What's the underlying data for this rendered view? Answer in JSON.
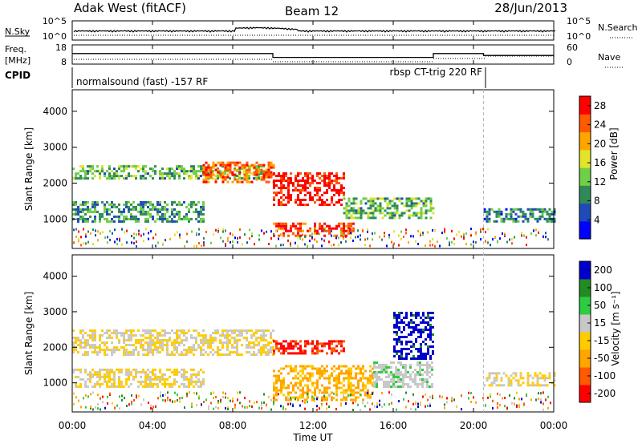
{
  "header": {
    "station": "Adak West (fitACF)",
    "beam": "Beam 12",
    "date": "28/Jun/2013"
  },
  "noise_panel": {
    "left_label": "N.Sky",
    "right_label": "N.Search",
    "left_ticks": [
      "10^5",
      "10^0"
    ],
    "right_ticks": [
      "10^5",
      "10^0"
    ]
  },
  "freq_panel": {
    "left_label_1": "Freq.",
    "left_label_2": "[MHz]",
    "left_ticks": [
      "18",
      "8"
    ],
    "right_ticks": [
      "60",
      "0"
    ],
    "right_label": "Nave",
    "freq_levels": [
      {
        "from": "00:00",
        "to": "10:00",
        "freq_mhz": 13.5
      },
      {
        "from": "10:00",
        "to": "18:00",
        "freq_mhz": 11.5
      },
      {
        "from": "18:00",
        "to": "20:30",
        "freq_mhz": 13.5
      },
      {
        "from": "20:30",
        "to": "24:00",
        "freq_mhz": 12.5
      }
    ]
  },
  "cpid_panel": {
    "label": "CPID",
    "modes": [
      {
        "name": "normalsound (fast) -157 RF",
        "from": "00:00",
        "to": "20:30"
      },
      {
        "name": "rbsp CT-trig 220 RF",
        "from": "20:30",
        "to": "24:00"
      }
    ]
  },
  "chart_data": [
    {
      "type": "heatmap",
      "title": "",
      "ylabel": "Slant Range [km]",
      "y_ticks": [
        "1000",
        "2000",
        "3000",
        "4000"
      ],
      "ylim": [
        180,
        4600
      ],
      "colorbar": {
        "label": "Power [dB]",
        "ticks": [
          "4",
          "8",
          "12",
          "16",
          "20",
          "24",
          "28"
        ],
        "range": [
          0,
          30
        ],
        "colors": [
          "#0000ff",
          "#1f4ab8",
          "#2e8b57",
          "#6fcf46",
          "#e3e32a",
          "#ffa500",
          "#ff5a00",
          "#ff0000"
        ]
      },
      "echo_bands": [
        {
          "from": "00:00",
          "to": "09:30",
          "range_km": [
            2100,
            2500
          ],
          "power_db": 12
        },
        {
          "from": "00:00",
          "to": "06:30",
          "range_km": [
            900,
            1500
          ],
          "power_db": 10
        },
        {
          "from": "06:30",
          "to": "10:00",
          "range_km": [
            2000,
            2600
          ],
          "power_db": 24
        },
        {
          "from": "10:00",
          "to": "13:30",
          "range_km": [
            1400,
            2300
          ],
          "power_db": 28
        },
        {
          "from": "10:00",
          "to": "14:00",
          "range_km": [
            550,
            900
          ],
          "power_db": 26
        },
        {
          "from": "13:30",
          "to": "18:00",
          "range_km": [
            1000,
            1600
          ],
          "power_db": 12
        },
        {
          "from": "20:30",
          "to": "24:00",
          "range_km": [
            900,
            1300
          ],
          "power_db": 8
        }
      ]
    },
    {
      "type": "heatmap",
      "title": "",
      "ylabel": "Slant Range [km]",
      "y_ticks": [
        "1000",
        "2000",
        "3000",
        "4000"
      ],
      "ylim": [
        180,
        4600
      ],
      "colorbar": {
        "label": "Velocity [m s⁻¹]",
        "ticks": [
          "-200",
          "-100",
          "-50",
          "-15",
          "15",
          "50",
          "100",
          "200"
        ],
        "range": [
          -250,
          250
        ],
        "colors": [
          "#ff0000",
          "#ff5a00",
          "#ffa500",
          "#ffcc00",
          "#c8c8c8",
          "#2ecc40",
          "#228b22",
          "#0000cc"
        ]
      },
      "echo_bands": [
        {
          "from": "00:00",
          "to": "10:00",
          "range_km": [
            1800,
            2500
          ],
          "velocity": 0
        },
        {
          "from": "00:00",
          "to": "06:30",
          "range_km": [
            900,
            1400
          ],
          "velocity": 0
        },
        {
          "from": "10:00",
          "to": "13:30",
          "range_km": [
            1800,
            2200
          ],
          "velocity": -200
        },
        {
          "from": "10:00",
          "to": "15:00",
          "range_km": [
            550,
            1500
          ],
          "velocity": -80
        },
        {
          "from": "15:00",
          "to": "18:00",
          "range_km": [
            900,
            1600
          ],
          "velocity": 40
        },
        {
          "from": "16:00",
          "to": "18:00",
          "range_km": [
            1700,
            3000
          ],
          "velocity": 220
        },
        {
          "from": "20:30",
          "to": "24:00",
          "range_km": [
            900,
            1300
          ],
          "velocity": 0
        }
      ]
    }
  ],
  "time_axis": {
    "label": "Time UT",
    "ticks": [
      "00:00",
      "04:00",
      "08:00",
      "12:00",
      "16:00",
      "20:00",
      "00:00"
    ]
  }
}
